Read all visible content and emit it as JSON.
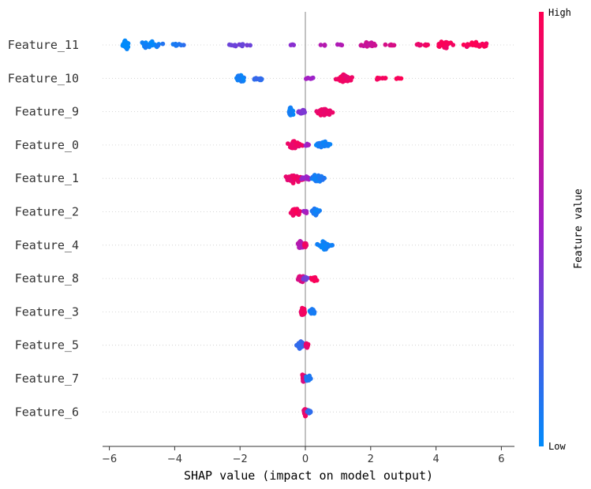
{
  "chart_data": {
    "type": "scatter",
    "subtype": "shap-beeswarm",
    "title": "",
    "xlabel": "SHAP value (impact on model output)",
    "ylabel": "",
    "xlim": [
      -6.3,
      6.4
    ],
    "xticks": [
      -6,
      -4,
      -2,
      0,
      2,
      4,
      6
    ],
    "xtick_labels": [
      "−6",
      "−4",
      "−2",
      "0",
      "2",
      "4",
      "6"
    ],
    "features": [
      {
        "name": "Feature_11",
        "clusters": [
          {
            "x": -5.5,
            "spread": 0.15,
            "n": 30,
            "value": 0.0
          },
          {
            "x": -4.7,
            "spread": 0.5,
            "n": 28,
            "value": 0.05
          },
          {
            "x": -3.9,
            "spread": 0.3,
            "n": 8,
            "value": 0.1
          },
          {
            "x": -2.0,
            "spread": 0.45,
            "n": 12,
            "value": 0.35
          },
          {
            "x": -0.4,
            "spread": 0.1,
            "n": 4,
            "value": 0.45
          },
          {
            "x": 0.8,
            "spread": 0.5,
            "n": 6,
            "value": 0.6
          },
          {
            "x": 1.9,
            "spread": 0.3,
            "n": 22,
            "value": 0.72
          },
          {
            "x": 2.6,
            "spread": 0.2,
            "n": 6,
            "value": 0.8
          },
          {
            "x": 3.6,
            "spread": 0.3,
            "n": 10,
            "value": 0.92
          },
          {
            "x": 4.3,
            "spread": 0.3,
            "n": 30,
            "value": 0.95
          },
          {
            "x": 5.2,
            "spread": 0.5,
            "n": 22,
            "value": 0.97
          }
        ]
      },
      {
        "name": "Feature_10",
        "clusters": [
          {
            "x": -2.0,
            "spread": 0.2,
            "n": 35,
            "value": 0.05
          },
          {
            "x": -1.4,
            "spread": 0.25,
            "n": 15,
            "value": 0.15
          },
          {
            "x": 0.1,
            "spread": 0.3,
            "n": 8,
            "value": 0.5
          },
          {
            "x": 1.2,
            "spread": 0.35,
            "n": 45,
            "value": 0.92
          },
          {
            "x": 2.2,
            "spread": 0.4,
            "n": 10,
            "value": 0.95
          },
          {
            "x": 2.8,
            "spread": 0.15,
            "n": 4,
            "value": 0.98
          }
        ]
      },
      {
        "name": "Feature_9",
        "clusters": [
          {
            "x": -0.45,
            "spread": 0.1,
            "n": 35,
            "value": 0.05
          },
          {
            "x": -0.1,
            "spread": 0.15,
            "n": 18,
            "value": 0.4
          },
          {
            "x": 0.55,
            "spread": 0.3,
            "n": 40,
            "value": 0.9
          }
        ]
      },
      {
        "name": "Feature_0",
        "clusters": [
          {
            "x": -0.3,
            "spread": 0.3,
            "n": 45,
            "value": 0.9
          },
          {
            "x": 0.05,
            "spread": 0.1,
            "n": 8,
            "value": 0.5
          },
          {
            "x": 0.55,
            "spread": 0.35,
            "n": 35,
            "value": 0.05
          }
        ]
      },
      {
        "name": "Feature_1",
        "clusters": [
          {
            "x": -0.35,
            "spread": 0.35,
            "n": 50,
            "value": 0.9
          },
          {
            "x": 0.0,
            "spread": 0.15,
            "n": 15,
            "value": 0.5
          },
          {
            "x": 0.4,
            "spread": 0.3,
            "n": 30,
            "value": 0.08
          }
        ]
      },
      {
        "name": "Feature_2",
        "clusters": [
          {
            "x": -0.3,
            "spread": 0.2,
            "n": 40,
            "value": 0.92
          },
          {
            "x": 0.0,
            "spread": 0.08,
            "n": 10,
            "value": 0.5
          },
          {
            "x": 0.3,
            "spread": 0.2,
            "n": 25,
            "value": 0.08
          }
        ]
      },
      {
        "name": "Feature_4",
        "clusters": [
          {
            "x": -0.15,
            "spread": 0.12,
            "n": 30,
            "value": 0.6
          },
          {
            "x": 0.0,
            "spread": 0.06,
            "n": 15,
            "value": 0.9
          },
          {
            "x": 0.55,
            "spread": 0.35,
            "n": 30,
            "value": 0.05
          }
        ]
      },
      {
        "name": "Feature_8",
        "clusters": [
          {
            "x": -0.1,
            "spread": 0.15,
            "n": 40,
            "value": 0.8
          },
          {
            "x": 0.3,
            "spread": 0.2,
            "n": 18,
            "value": 0.95
          },
          {
            "x": 0.0,
            "spread": 0.08,
            "n": 12,
            "value": 0.35
          }
        ]
      },
      {
        "name": "Feature_3",
        "clusters": [
          {
            "x": -0.08,
            "spread": 0.1,
            "n": 40,
            "value": 0.9
          },
          {
            "x": 0.2,
            "spread": 0.12,
            "n": 25,
            "value": 0.05
          }
        ]
      },
      {
        "name": "Feature_5",
        "clusters": [
          {
            "x": -0.15,
            "spread": 0.18,
            "n": 35,
            "value": 0.15
          },
          {
            "x": 0.05,
            "spread": 0.08,
            "n": 20,
            "value": 0.9
          }
        ]
      },
      {
        "name": "Feature_7",
        "clusters": [
          {
            "x": -0.05,
            "spread": 0.08,
            "n": 30,
            "value": 0.85
          },
          {
            "x": 0.1,
            "spread": 0.1,
            "n": 25,
            "value": 0.1
          }
        ]
      },
      {
        "name": "Feature_6",
        "clusters": [
          {
            "x": 0.0,
            "spread": 0.07,
            "n": 30,
            "value": 0.9
          },
          {
            "x": 0.12,
            "spread": 0.08,
            "n": 15,
            "value": 0.15
          }
        ]
      }
    ],
    "colorbar": {
      "title": "Feature value",
      "high_label": "High",
      "low_label": "Low",
      "low_color": "#008bfb",
      "mid_color": "#a020c8",
      "high_color": "#ff0052"
    }
  }
}
